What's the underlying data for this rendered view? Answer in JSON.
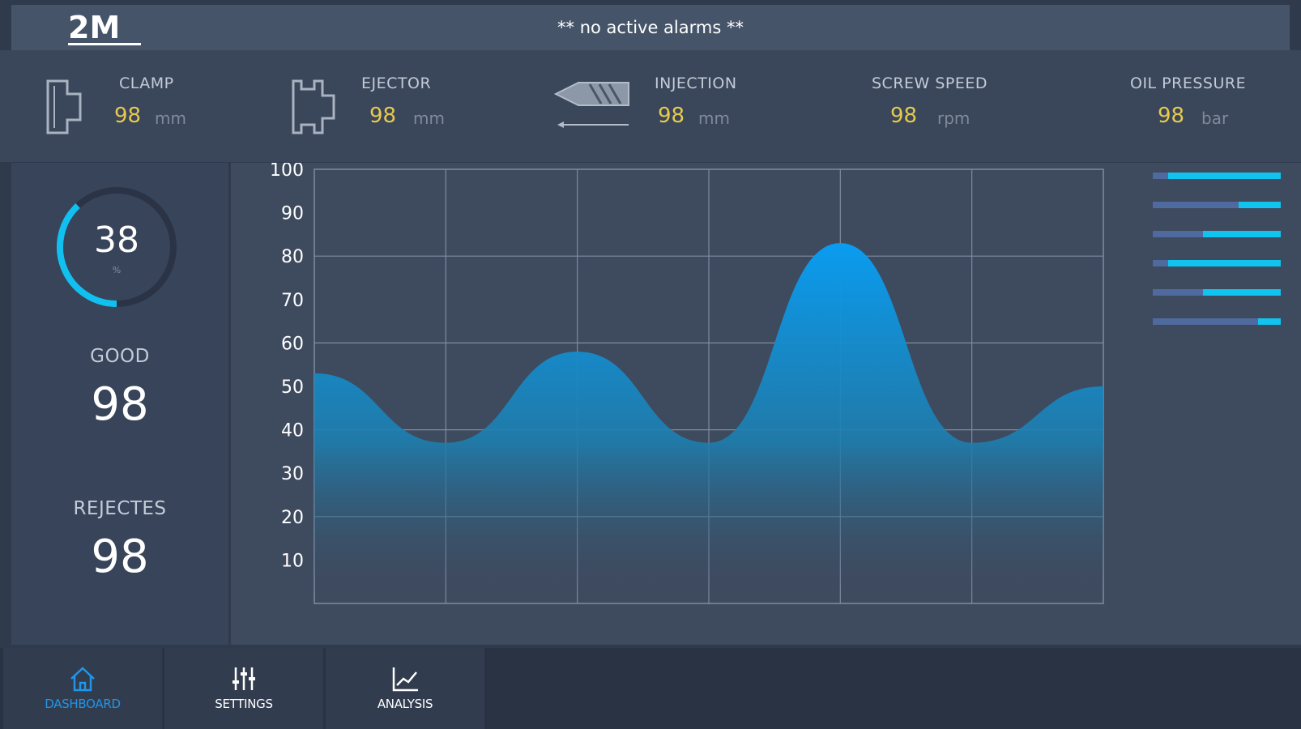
{
  "header": {
    "logo_alt": "2M logo",
    "alarm_text": "** no active alarms **"
  },
  "readouts": [
    {
      "label": "CLAMP",
      "value": "98",
      "unit": "mm",
      "icon": "clamp-icon"
    },
    {
      "label": "EJECTOR",
      "value": "98",
      "unit": "mm",
      "icon": "ejector-icon"
    },
    {
      "label": "INJECTION",
      "value": "98",
      "unit": "mm",
      "icon": "injection-icon"
    },
    {
      "label": "SCREW SPEED",
      "value": "98",
      "unit": "rpm"
    },
    {
      "label": "OIL PRESSURE",
      "value": "98",
      "unit": "bar"
    }
  ],
  "stats": {
    "gauge_value": "38",
    "gauge_unit": "%",
    "gauge_fraction": 0.38,
    "good_label": "GOOD",
    "good_value": "98",
    "rejects_label": "REJECTES",
    "rejects_value": "98"
  },
  "side_bars": [
    0.88,
    0.33,
    0.61,
    0.88,
    0.61,
    0.18
  ],
  "chart_data": {
    "type": "area",
    "title": "",
    "xlabel": "",
    "ylabel": "",
    "ylim": [
      0,
      100
    ],
    "yticks": [
      10,
      20,
      30,
      40,
      50,
      60,
      70,
      80,
      90,
      100
    ],
    "grid": true,
    "x": [
      0,
      1,
      2,
      3,
      4,
      5,
      6
    ],
    "values": [
      53,
      37,
      58,
      37,
      83,
      37,
      50
    ],
    "color": "#0a9cf0"
  },
  "nav": [
    {
      "label": "DASHBOARD",
      "icon": "home-icon",
      "active": true
    },
    {
      "label": "SETTINGS",
      "icon": "sliders-icon",
      "active": false
    },
    {
      "label": "ANALYSIS",
      "icon": "line-chart-icon",
      "active": false
    }
  ],
  "colors": {
    "accent": "#10c4ef",
    "value_yellow": "#e6c94d",
    "active_nav": "#1f96e8"
  }
}
